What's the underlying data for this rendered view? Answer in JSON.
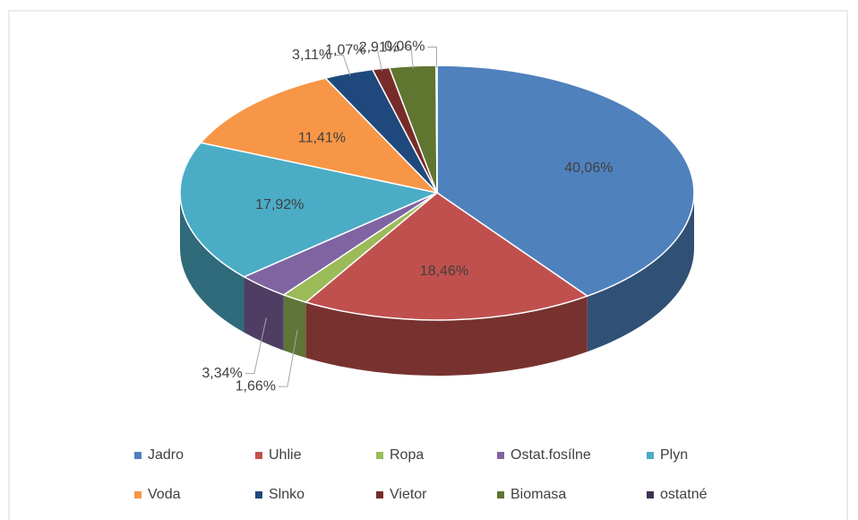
{
  "chart_data": {
    "type": "pie",
    "categories": [
      "Jadro",
      "Uhlie",
      "Ropa",
      "Ostat.fosílne",
      "Plyn",
      "Voda",
      "Slnko",
      "Vietor",
      "Biomasa",
      "ostatné"
    ],
    "values": [
      40.06,
      18.46,
      1.66,
      3.34,
      17.92,
      11.41,
      3.11,
      1.07,
      2.91,
      0.06
    ],
    "value_labels": [
      "40,06%",
      "18,46%",
      "1,66%",
      "3,34%",
      "17,92%",
      "11,41%",
      "3,11%",
      "1,07%",
      "2,91%",
      "0,06%"
    ],
    "colors": [
      "#4f81bd",
      "#c0504d",
      "#9bbb59",
      "#8064a2",
      "#4bacc6",
      "#f79646",
      "#1f497d",
      "#772c2a",
      "#5f7530",
      "#403152"
    ],
    "legend": "bottom"
  }
}
